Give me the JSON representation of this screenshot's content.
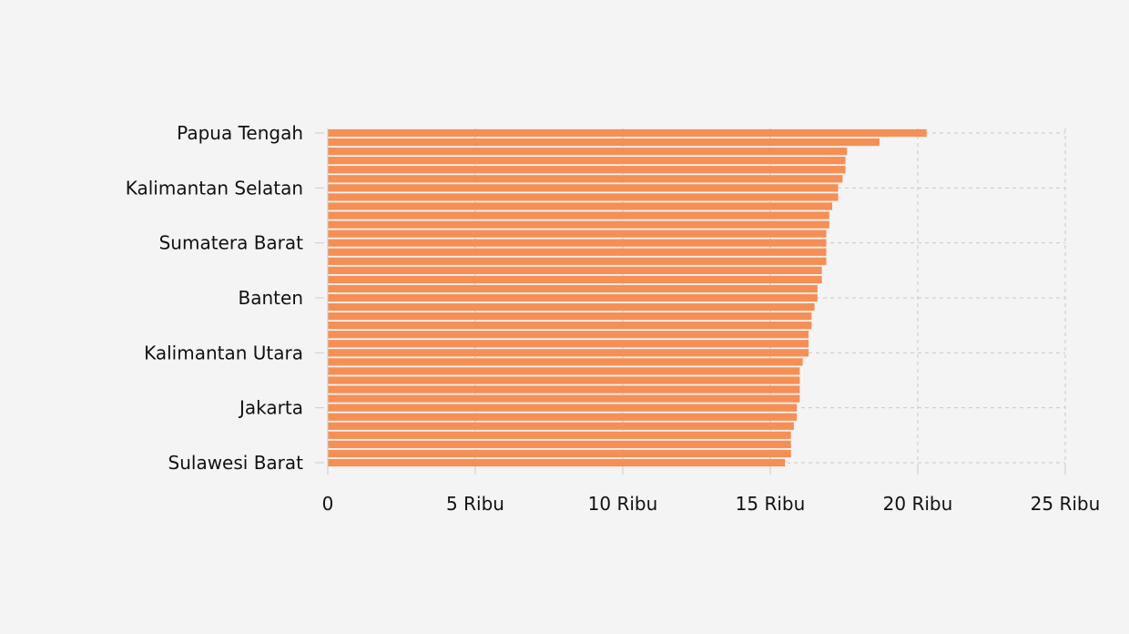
{
  "chart_data": {
    "type": "bar",
    "orientation": "horizontal",
    "title": "",
    "xlabel": "",
    "ylabel": "",
    "xlim": [
      0,
      25000
    ],
    "grid": true,
    "bar_color": "#f58f55",
    "grid_color": "#c8c8c8",
    "background": "#f4f4f4",
    "x_ticks": [
      {
        "value": 0,
        "label": "0"
      },
      {
        "value": 5000,
        "label": "5 Ribu"
      },
      {
        "value": 10000,
        "label": "10 Ribu"
      },
      {
        "value": 15000,
        "label": "15 Ribu"
      },
      {
        "value": 20000,
        "label": "20 Ribu"
      },
      {
        "value": 25000,
        "label": "25 Ribu"
      }
    ],
    "category_labels": [
      {
        "index": 0,
        "label": "Papua Tengah"
      },
      {
        "index": 6,
        "label": "Kalimantan Selatan"
      },
      {
        "index": 12,
        "label": "Sumatera Barat"
      },
      {
        "index": 18,
        "label": "Banten"
      },
      {
        "index": 24,
        "label": "Kalimantan Utara"
      },
      {
        "index": 30,
        "label": "Jakarta"
      },
      {
        "index": 36,
        "label": "Sulawesi Barat"
      }
    ],
    "values": [
      20300,
      18700,
      17600,
      17550,
      17550,
      17450,
      17300,
      17300,
      17100,
      17000,
      17000,
      16900,
      16900,
      16900,
      16900,
      16750,
      16750,
      16600,
      16600,
      16500,
      16400,
      16400,
      16300,
      16300,
      16300,
      16100,
      16000,
      16000,
      16000,
      16000,
      15900,
      15900,
      15800,
      15700,
      15700,
      15700,
      15500
    ]
  }
}
